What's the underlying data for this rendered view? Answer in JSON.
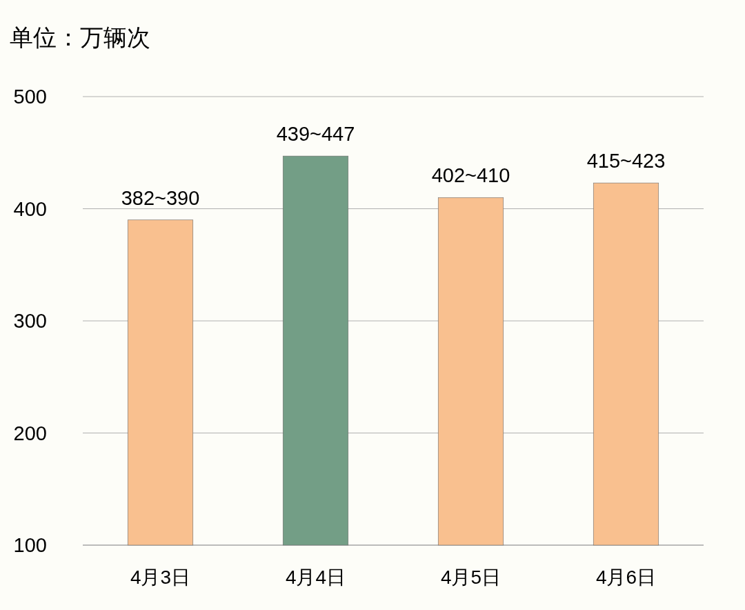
{
  "chart_data": {
    "type": "bar",
    "ylabel": "单位：万辆次",
    "categories": [
      "4月3日",
      "4月4日",
      "4月5日",
      "4月6日"
    ],
    "values": [
      390,
      447,
      410,
      423
    ],
    "colors": [
      "#f9c08f",
      "#739e86",
      "#f9c08f",
      "#f9c08f"
    ],
    "value_labels": [
      "382~390",
      "439~447",
      "402~410",
      "415~423"
    ],
    "ylim": [
      100,
      500
    ],
    "yticks": [
      100,
      200,
      300,
      400,
      500
    ],
    "grid": "y"
  }
}
